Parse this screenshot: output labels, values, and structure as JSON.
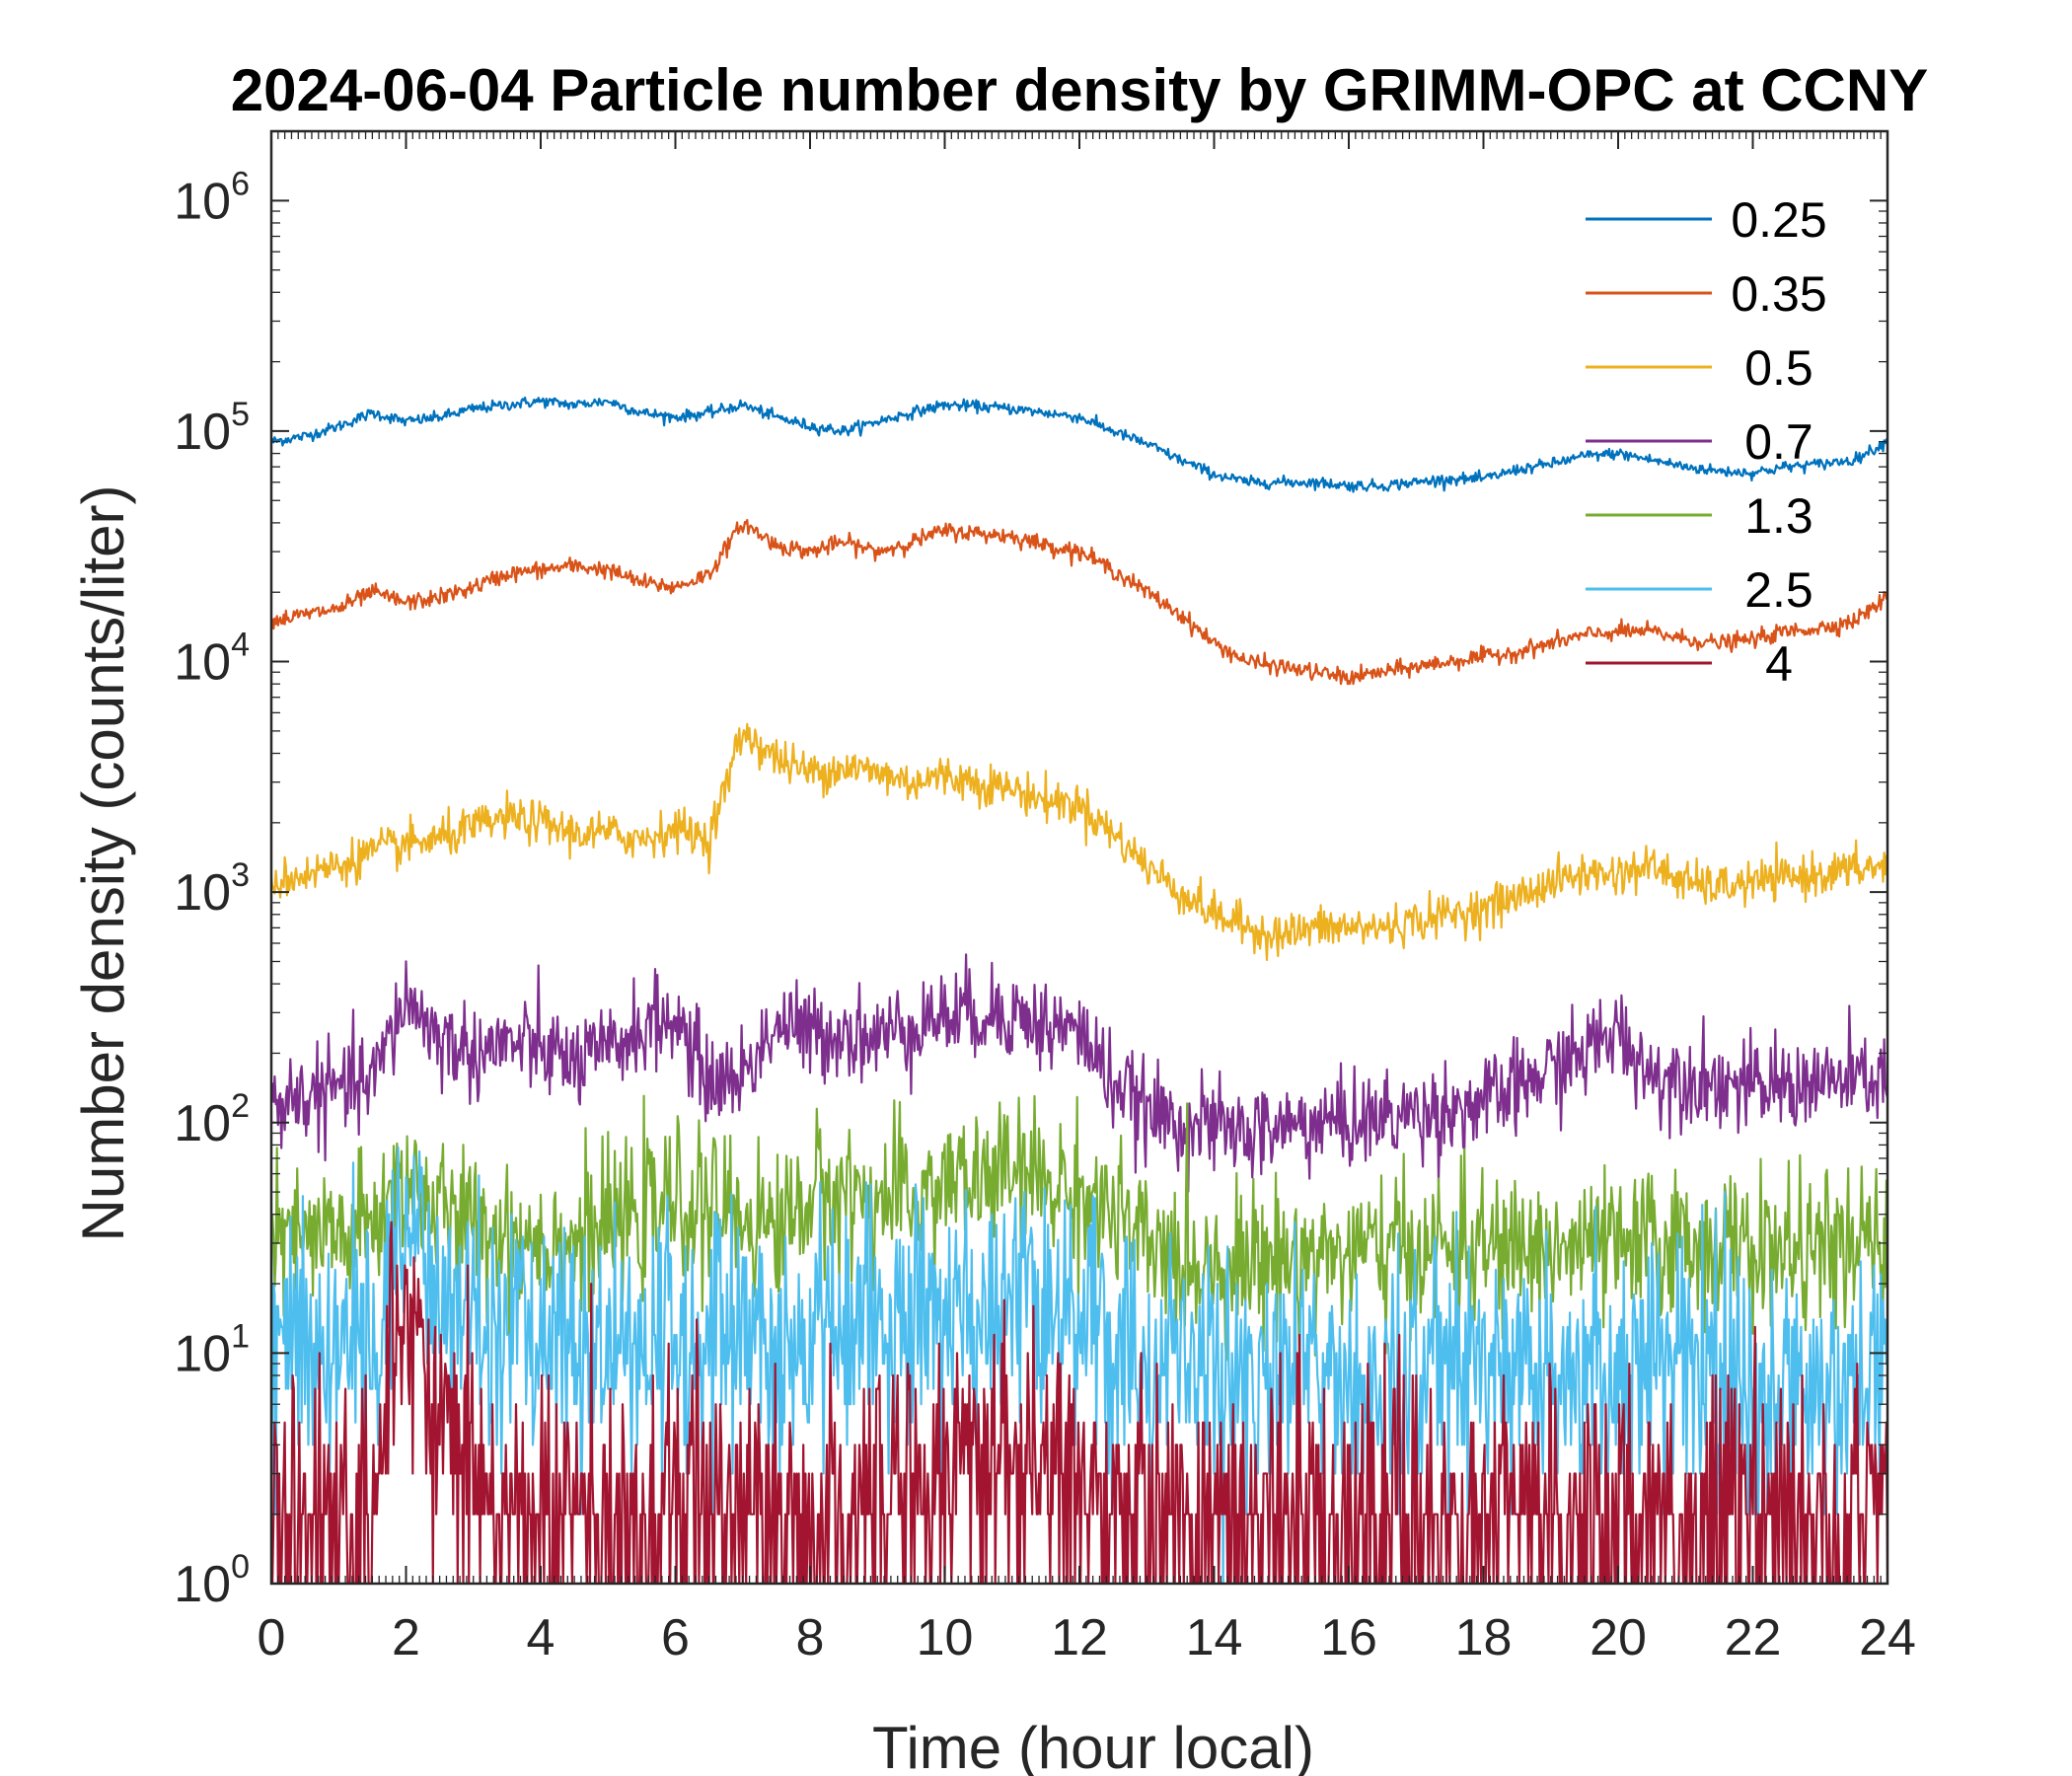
{
  "chart_data": {
    "type": "line",
    "title": "2024-06-04 Particle number density by GRIMM-OPC at CCNY",
    "xlabel": "Time (hour local)",
    "ylabel": "Number density (counts/liter)",
    "xlim": [
      0,
      24
    ],
    "ylim": [
      1,
      2000000
    ],
    "yscale": "log",
    "xticks": [
      0,
      2,
      4,
      6,
      8,
      10,
      12,
      14,
      16,
      18,
      20,
      22,
      24
    ],
    "yticks": [
      {
        "value": 1,
        "base": "10",
        "exp": "0"
      },
      {
        "value": 10,
        "base": "10",
        "exp": "1"
      },
      {
        "value": 100,
        "base": "10",
        "exp": "2"
      },
      {
        "value": 1000,
        "base": "10",
        "exp": "3"
      },
      {
        "value": 10000,
        "base": "10",
        "exp": "4"
      },
      {
        "value": 100000,
        "base": "10",
        "exp": "5"
      },
      {
        "value": 1000000,
        "base": "10",
        "exp": "6"
      }
    ],
    "grid": false,
    "legend_position": "top-right",
    "x": [
      0,
      0.5,
      1,
      1.5,
      2,
      2.5,
      3,
      3.5,
      4,
      4.5,
      5,
      5.5,
      6,
      6.5,
      7,
      7.5,
      8,
      8.5,
      9,
      9.5,
      10,
      10.5,
      11,
      11.5,
      12,
      12.5,
      13,
      13.5,
      14,
      14.5,
      15,
      15.5,
      16,
      16.5,
      17,
      17.5,
      18,
      18.5,
      19,
      19.5,
      20,
      20.5,
      21,
      21.5,
      22,
      22.5,
      23,
      23.5,
      24
    ],
    "series": [
      {
        "name": "0.25",
        "color": "#0072BD",
        "values": [
          90000,
          95000,
          105000,
          120000,
          110000,
          115000,
          125000,
          130000,
          135000,
          130000,
          135000,
          120000,
          115000,
          120000,
          130000,
          115000,
          105000,
          100000,
          110000,
          120000,
          130000,
          128000,
          125000,
          120000,
          115000,
          100000,
          88000,
          75000,
          65000,
          60000,
          60000,
          60000,
          58000,
          58000,
          60000,
          62000,
          62000,
          68000,
          72000,
          78000,
          80000,
          75000,
          70000,
          67000,
          66000,
          70000,
          72000,
          75000,
          90000
        ]
      },
      {
        "name": "0.35",
        "color": "#D95319",
        "values": [
          15000,
          16000,
          17000,
          20000,
          18000,
          19000,
          21000,
          24000,
          25000,
          26000,
          25000,
          22000,
          21000,
          24000,
          40000,
          32000,
          30000,
          33000,
          30000,
          33000,
          37000,
          36000,
          35000,
          32000,
          30000,
          25000,
          20000,
          16000,
          12000,
          10000,
          9500,
          9000,
          8500,
          9000,
          9500,
          10000,
          10500,
          11000,
          12000,
          13000,
          13500,
          13500,
          12500,
          12000,
          12500,
          13500,
          14000,
          15000,
          19000
        ]
      },
      {
        "name": "0.5",
        "color": "#EDB120",
        "values": [
          1100,
          1200,
          1300,
          1500,
          1600,
          1700,
          1900,
          2100,
          2000,
          1800,
          1800,
          1700,
          1900,
          1700,
          5000,
          3800,
          3300,
          3500,
          3300,
          3000,
          3200,
          3000,
          2800,
          2500,
          2400,
          1800,
          1300,
          1000,
          800,
          700,
          650,
          700,
          700,
          700,
          750,
          800,
          850,
          950,
          1100,
          1200,
          1200,
          1300,
          1100,
          1050,
          1100,
          1150,
          1200,
          1250,
          1300
        ]
      },
      {
        "name": "0.7",
        "color": "#7E2F8E",
        "values": [
          120,
          130,
          140,
          150,
          350,
          230,
          200,
          220,
          210,
          180,
          200,
          260,
          280,
          150,
          160,
          270,
          240,
          250,
          230,
          270,
          290,
          300,
          300,
          260,
          250,
          150,
          110,
          100,
          95,
          90,
          95,
          100,
          100,
          105,
          110,
          115,
          120,
          140,
          170,
          200,
          250,
          160,
          160,
          150,
          140,
          145,
          150,
          150,
          160
        ]
      },
      {
        "name": "1.3",
        "color": "#77AC30",
        "values": [
          30,
          30,
          32,
          35,
          60,
          40,
          35,
          33,
          32,
          30,
          35,
          40,
          45,
          42,
          40,
          35,
          48,
          50,
          45,
          45,
          55,
          55,
          60,
          55,
          50,
          40,
          28,
          25,
          25,
          25,
          26,
          27,
          27,
          28,
          28,
          28,
          28,
          28,
          28,
          28,
          28,
          30,
          30,
          30,
          28,
          28,
          28,
          28,
          30
        ]
      },
      {
        "name": "2.5",
        "color": "#4DBEEE",
        "values": [
          12,
          12,
          12,
          12,
          40,
          18,
          14,
          12,
          12,
          11,
          12,
          12,
          13,
          12,
          12,
          12,
          12,
          14,
          14,
          15,
          15,
          16,
          17,
          16,
          15,
          12,
          10,
          9,
          9,
          9,
          9,
          9,
          9,
          9,
          9,
          9,
          9,
          9,
          9,
          9,
          9,
          9,
          9,
          9,
          8,
          7,
          7,
          7,
          8
        ]
      },
      {
        "name": "4",
        "color": "#A2142F",
        "values": [
          2,
          2,
          2,
          2,
          18,
          6,
          3,
          2,
          2,
          2,
          2,
          2,
          2.5,
          2,
          2,
          2,
          2,
          2,
          2.5,
          3,
          3.5,
          4,
          4,
          3.5,
          3,
          2.5,
          2.5,
          2,
          2,
          2,
          2,
          2,
          2,
          2,
          2,
          2,
          2,
          2,
          2,
          2,
          2,
          2,
          2,
          2,
          2,
          2,
          2,
          2,
          2
        ]
      }
    ]
  }
}
